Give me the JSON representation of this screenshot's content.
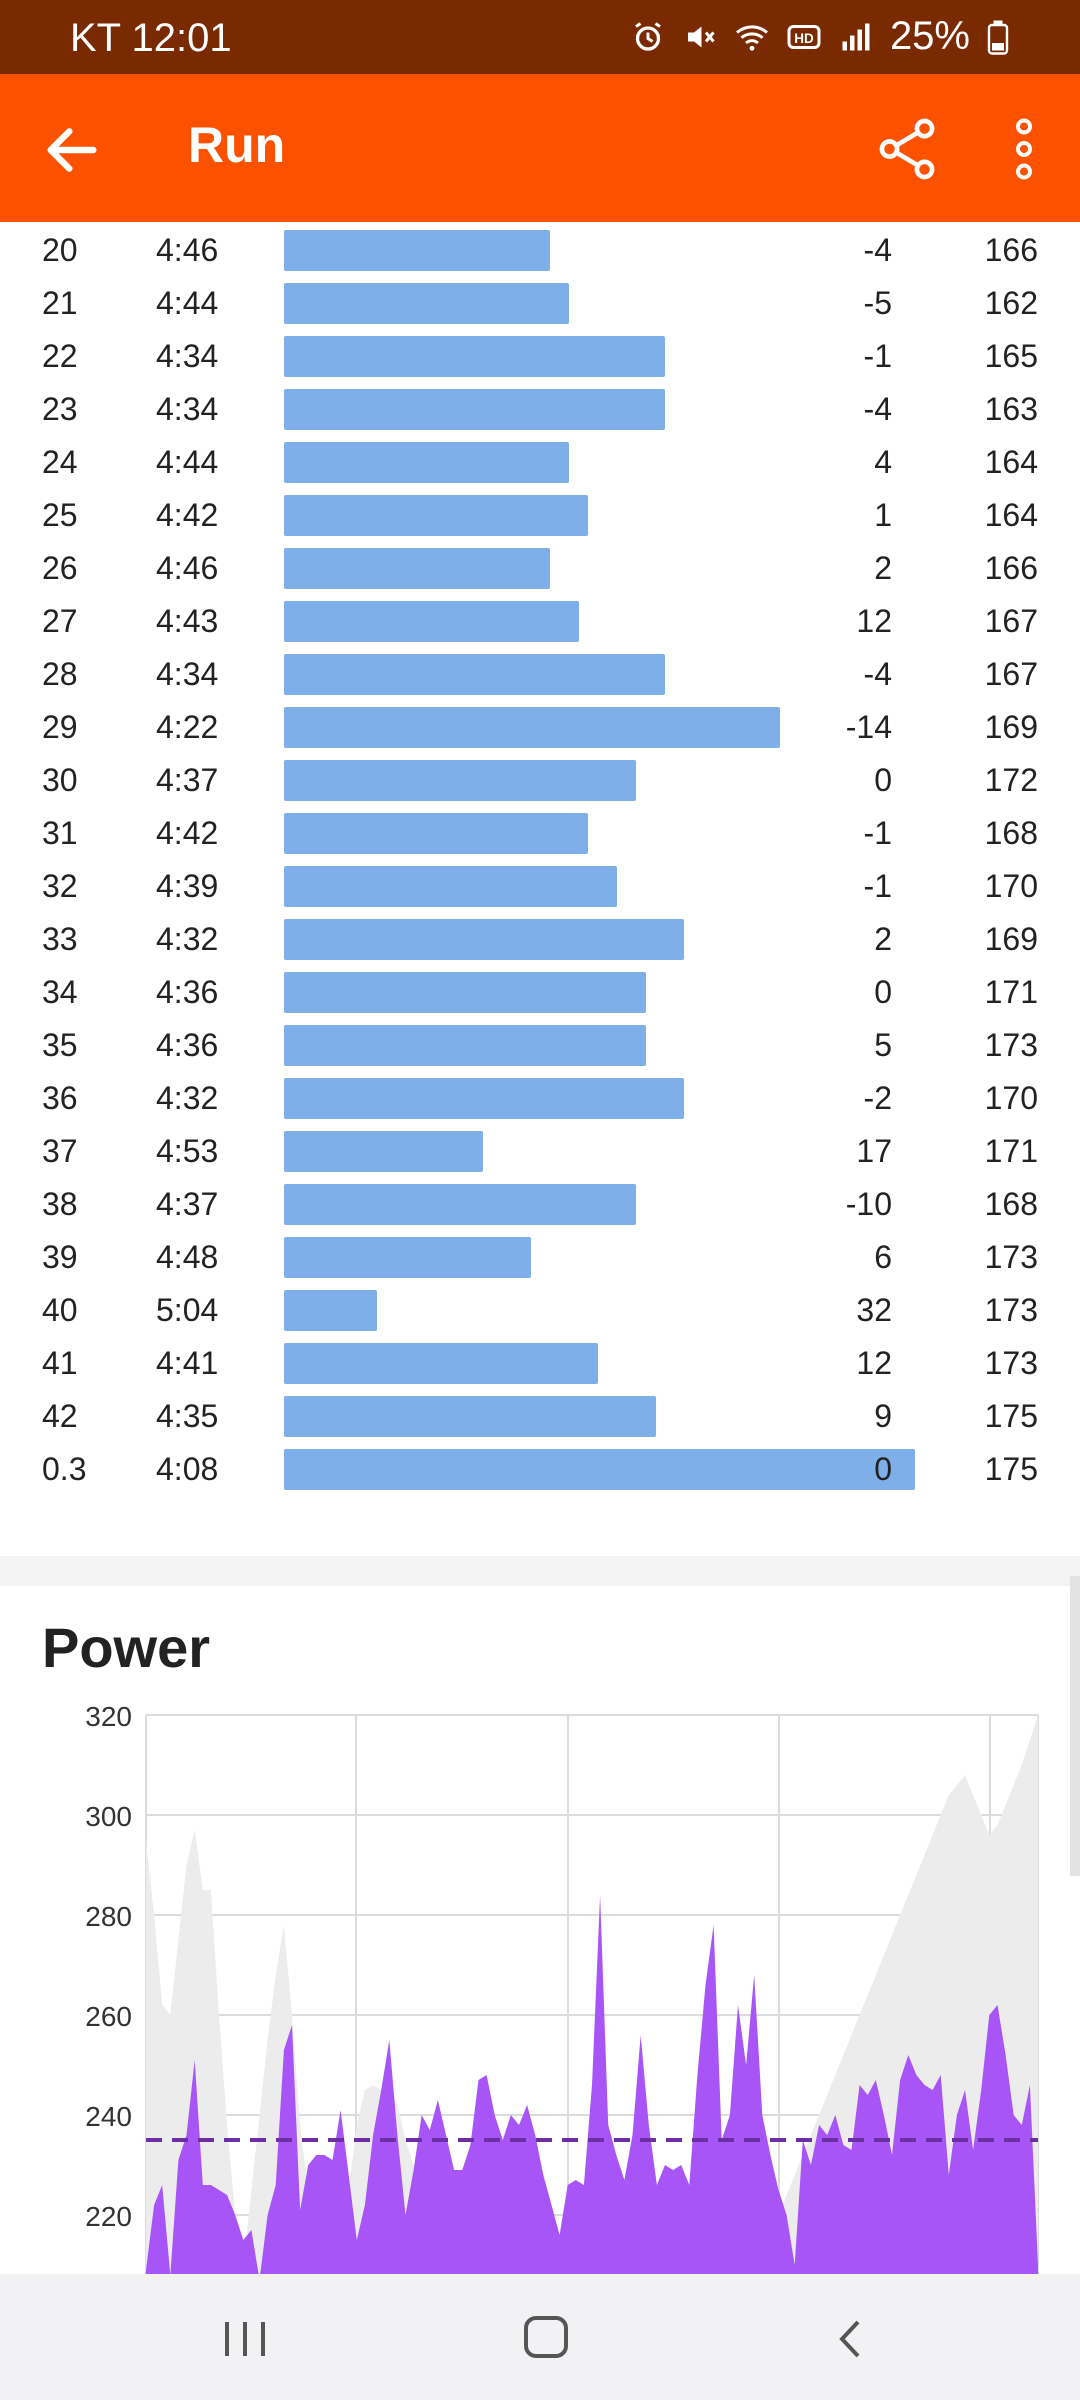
{
  "status": {
    "time": "KT 12:01",
    "battery": "25%",
    "icons": [
      "alarm-icon",
      "mute-icon",
      "wifi-icon",
      "hd-icon",
      "signal-icon",
      "battery-icon"
    ]
  },
  "appbar": {
    "title": "Run",
    "color": "#fc5200",
    "icons": [
      "back-arrow-icon",
      "share-icon",
      "more-vert-icon"
    ]
  },
  "splits": {
    "bar_color": "#7eafe8",
    "rows": [
      {
        "km": "20",
        "pace": "4:46",
        "elev": "-4",
        "hr": "166"
      },
      {
        "km": "21",
        "pace": "4:44",
        "elev": "-5",
        "hr": "162"
      },
      {
        "km": "22",
        "pace": "4:34",
        "elev": "-1",
        "hr": "165"
      },
      {
        "km": "23",
        "pace": "4:34",
        "elev": "-4",
        "hr": "163"
      },
      {
        "km": "24",
        "pace": "4:44",
        "elev": "4",
        "hr": "164"
      },
      {
        "km": "25",
        "pace": "4:42",
        "elev": "1",
        "hr": "164"
      },
      {
        "km": "26",
        "pace": "4:46",
        "elev": "2",
        "hr": "166"
      },
      {
        "km": "27",
        "pace": "4:43",
        "elev": "12",
        "hr": "167"
      },
      {
        "km": "28",
        "pace": "4:34",
        "elev": "-4",
        "hr": "167"
      },
      {
        "km": "29",
        "pace": "4:22",
        "elev": "-14",
        "hr": "169"
      },
      {
        "km": "30",
        "pace": "4:37",
        "elev": "0",
        "hr": "172"
      },
      {
        "km": "31",
        "pace": "4:42",
        "elev": "-1",
        "hr": "168"
      },
      {
        "km": "32",
        "pace": "4:39",
        "elev": "-1",
        "hr": "170"
      },
      {
        "km": "33",
        "pace": "4:32",
        "elev": "2",
        "hr": "169"
      },
      {
        "km": "34",
        "pace": "4:36",
        "elev": "0",
        "hr": "171"
      },
      {
        "km": "35",
        "pace": "4:36",
        "elev": "5",
        "hr": "173"
      },
      {
        "km": "36",
        "pace": "4:32",
        "elev": "-2",
        "hr": "170"
      },
      {
        "km": "37",
        "pace": "4:53",
        "elev": "17",
        "hr": "171"
      },
      {
        "km": "38",
        "pace": "4:37",
        "elev": "-10",
        "hr": "168"
      },
      {
        "km": "39",
        "pace": "4:48",
        "elev": "6",
        "hr": "173"
      },
      {
        "km": "40",
        "pace": "5:04",
        "elev": "32",
        "hr": "173"
      },
      {
        "km": "41",
        "pace": "4:41",
        "elev": "12",
        "hr": "173"
      },
      {
        "km": "42",
        "pace": "4:35",
        "elev": "9",
        "hr": "175"
      },
      {
        "km": "0.3",
        "pace": "4:08",
        "elev": "0",
        "hr": "175"
      }
    ]
  },
  "power": {
    "title": "Power"
  },
  "chart_data": {
    "type": "area",
    "title": "Power",
    "y_ticks": [
      "320",
      "300",
      "280",
      "260",
      "240",
      "220"
    ],
    "ylim": [
      208,
      320
    ],
    "average": 235,
    "grid": true,
    "series": [
      {
        "color": "#a855f7",
        "values": [
          209,
          222,
          226,
          208,
          231,
          236,
          251,
          226,
          226,
          225,
          224,
          220,
          215,
          217,
          207,
          220,
          226,
          253,
          258,
          221,
          230,
          232,
          232,
          231,
          241,
          228,
          215,
          222,
          236,
          245,
          255,
          236,
          220,
          229,
          240,
          237,
          243,
          236,
          229,
          229,
          234,
          247,
          248,
          240,
          235,
          240,
          238,
          242,
          236,
          228,
          222,
          216,
          226,
          227,
          226,
          246,
          284,
          238,
          232,
          227,
          236,
          256,
          238,
          226,
          230,
          229,
          230,
          226,
          248,
          266,
          278,
          235,
          240,
          262,
          250,
          268,
          240,
          232,
          225,
          220,
          210,
          235,
          230,
          238,
          236,
          240,
          234,
          233,
          246,
          244,
          247,
          240,
          232,
          247,
          252,
          248,
          246,
          245,
          248,
          228,
          240,
          245,
          233,
          245,
          260,
          262,
          252,
          240,
          238,
          246,
          210
        ]
      },
      {
        "color": "#ececec",
        "values": [
          295,
          280,
          262,
          260,
          275,
          290,
          297,
          285,
          285,
          260,
          238,
          220,
          210,
          225,
          240,
          255,
          268,
          278,
          260,
          238,
          225,
          220,
          215,
          210,
          212,
          225,
          238,
          245,
          246,
          245,
          246,
          242,
          235,
          230,
          222,
          220,
          218,
          215,
          212,
          210,
          212,
          214,
          215,
          216,
          215,
          214,
          212,
          210,
          212,
          215,
          218,
          216,
          214,
          212,
          210,
          210,
          212,
          214,
          216,
          218,
          216,
          214,
          212,
          210,
          212,
          214,
          216,
          218,
          220,
          222,
          224,
          225,
          220,
          216,
          214,
          212,
          215,
          218,
          220,
          224,
          228,
          232,
          236,
          240,
          244,
          248,
          252,
          256,
          260,
          264,
          268,
          272,
          276,
          280,
          284,
          288,
          292,
          296,
          300,
          304,
          306,
          308,
          304,
          300,
          296,
          298,
          302,
          306,
          310,
          315,
          320
        ]
      }
    ]
  },
  "navbar": {
    "icons": [
      "recent-apps-icon",
      "home-icon",
      "back-icon"
    ]
  }
}
